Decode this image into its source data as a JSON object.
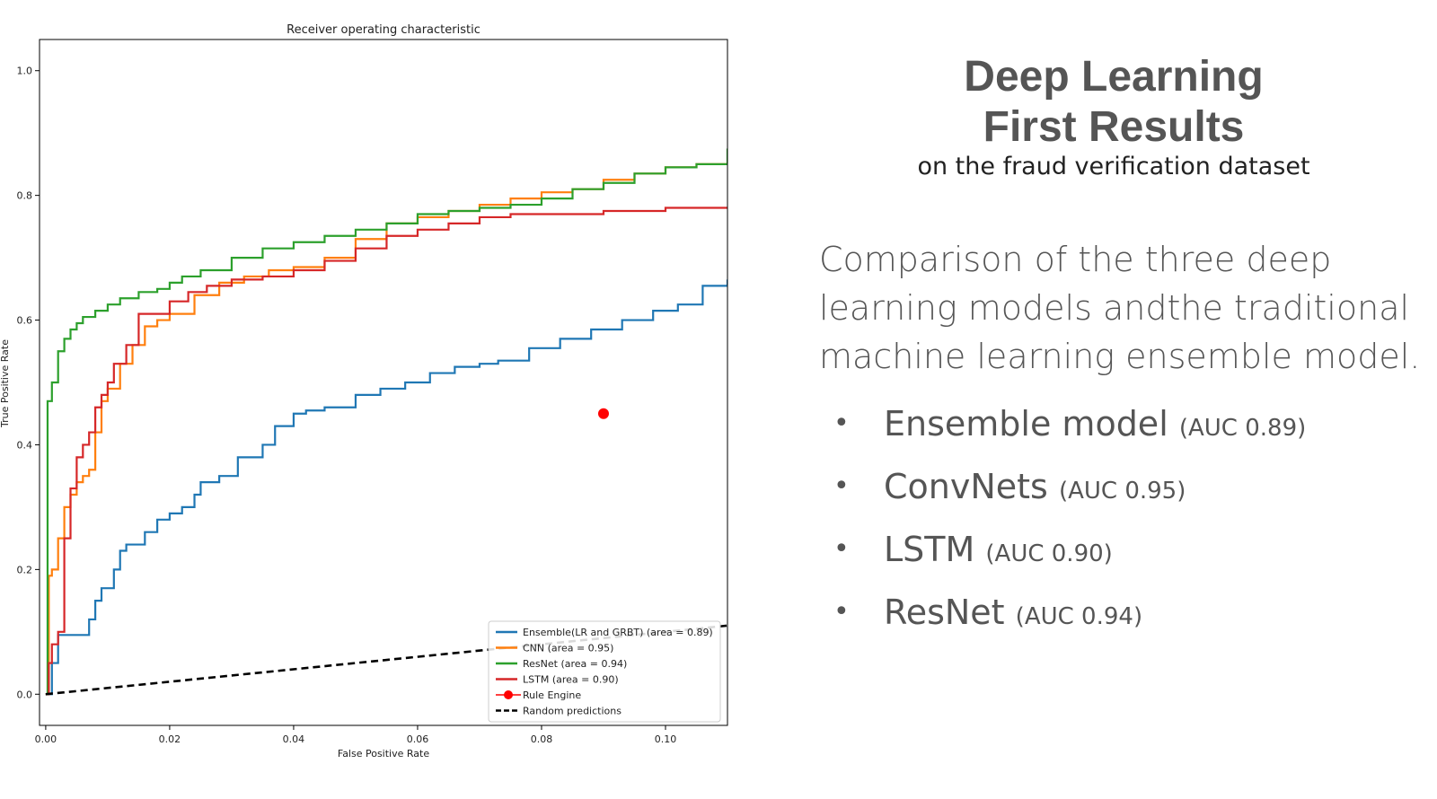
{
  "slide": {
    "title_line1": "Deep Learning",
    "title_line2": "First Results",
    "subtitle": "on the fraud verification dataset",
    "paragraph": "Comparison of the three deep learning models andthe traditional machine learning ensemble model.",
    "bullets": [
      {
        "name": "Ensemble model",
        "auc": "(AUC 0.89)"
      },
      {
        "name": "ConvNets",
        "auc": "(AUC 0.95)"
      },
      {
        "name": "LSTM",
        "auc": "(AUC 0.90)"
      },
      {
        "name": "ResNet",
        "auc": "(AUC 0.94)"
      }
    ],
    "bullet_glyph": "•"
  },
  "chart_data": {
    "type": "line",
    "title": "Receiver operating characteristic",
    "xlabel": "False Positive Rate",
    "ylabel": "True Positive Rate",
    "xlim": [
      -0.001,
      0.11
    ],
    "ylim": [
      -0.05,
      1.05
    ],
    "xticks": [
      0.0,
      0.02,
      0.04,
      0.06,
      0.08,
      0.1
    ],
    "xtick_labels": [
      "0.00",
      "0.02",
      "0.04",
      "0.06",
      "0.08",
      "0.10"
    ],
    "yticks": [
      0.0,
      0.2,
      0.4,
      0.6,
      0.8,
      1.0
    ],
    "ytick_labels": [
      "0.0",
      "0.2",
      "0.4",
      "0.6",
      "0.8",
      "1.0"
    ],
    "legend_position": "lower-right",
    "series": [
      {
        "name": "Ensemble(LR and GRBT) (area = 0.89)",
        "color": "#1f77b4",
        "kind": "line",
        "x": [
          0,
          0.0005,
          0.001,
          0.002,
          0.0065,
          0.007,
          0.008,
          0.009,
          0.011,
          0.012,
          0.013,
          0.016,
          0.018,
          0.02,
          0.022,
          0.024,
          0.025,
          0.028,
          0.031,
          0.035,
          0.037,
          0.04,
          0.042,
          0.045,
          0.05,
          0.054,
          0.058,
          0.062,
          0.066,
          0.07,
          0.073,
          0.078,
          0.083,
          0.088,
          0.093,
          0.098,
          0.102,
          0.106,
          0.11
        ],
        "y": [
          0,
          0.0,
          0.05,
          0.095,
          0.095,
          0.12,
          0.15,
          0.17,
          0.2,
          0.23,
          0.24,
          0.26,
          0.28,
          0.29,
          0.3,
          0.32,
          0.34,
          0.35,
          0.38,
          0.4,
          0.43,
          0.45,
          0.455,
          0.46,
          0.48,
          0.49,
          0.5,
          0.515,
          0.525,
          0.53,
          0.535,
          0.555,
          0.57,
          0.585,
          0.6,
          0.615,
          0.625,
          0.655,
          0.665
        ]
      },
      {
        "name": "CNN (area = 0.95)",
        "color": "#ff7f0e",
        "kind": "line",
        "x": [
          0,
          0.0005,
          0.001,
          0.002,
          0.003,
          0.004,
          0.005,
          0.006,
          0.007,
          0.008,
          0.009,
          0.01,
          0.012,
          0.014,
          0.016,
          0.018,
          0.02,
          0.024,
          0.028,
          0.032,
          0.036,
          0.04,
          0.045,
          0.05,
          0.055,
          0.06,
          0.065,
          0.07,
          0.075,
          0.08,
          0.085,
          0.09,
          0.095,
          0.1,
          0.105,
          0.11
        ],
        "y": [
          0,
          0.19,
          0.2,
          0.25,
          0.3,
          0.32,
          0.34,
          0.35,
          0.36,
          0.42,
          0.47,
          0.49,
          0.53,
          0.56,
          0.59,
          0.6,
          0.61,
          0.64,
          0.66,
          0.67,
          0.68,
          0.685,
          0.7,
          0.73,
          0.755,
          0.765,
          0.775,
          0.785,
          0.795,
          0.805,
          0.81,
          0.825,
          0.835,
          0.845,
          0.85,
          0.85
        ]
      },
      {
        "name": "ResNet (area = 0.94)",
        "color": "#2ca02c",
        "kind": "line",
        "x": [
          0,
          0.0003,
          0.001,
          0.002,
          0.003,
          0.004,
          0.005,
          0.006,
          0.008,
          0.01,
          0.012,
          0.015,
          0.018,
          0.02,
          0.022,
          0.025,
          0.03,
          0.035,
          0.04,
          0.045,
          0.05,
          0.055,
          0.06,
          0.065,
          0.07,
          0.075,
          0.08,
          0.085,
          0.09,
          0.095,
          0.1,
          0.105,
          0.11
        ],
        "y": [
          0,
          0.47,
          0.5,
          0.55,
          0.57,
          0.585,
          0.595,
          0.605,
          0.615,
          0.625,
          0.635,
          0.645,
          0.65,
          0.66,
          0.67,
          0.68,
          0.7,
          0.715,
          0.725,
          0.735,
          0.745,
          0.755,
          0.77,
          0.775,
          0.78,
          0.785,
          0.795,
          0.81,
          0.82,
          0.835,
          0.845,
          0.85,
          0.875
        ]
      },
      {
        "name": "LSTM (area = 0.90)",
        "color": "#d62728",
        "kind": "line",
        "x": [
          0,
          0.0005,
          0.001,
          0.002,
          0.003,
          0.004,
          0.005,
          0.006,
          0.007,
          0.008,
          0.009,
          0.01,
          0.011,
          0.013,
          0.015,
          0.017,
          0.02,
          0.023,
          0.026,
          0.03,
          0.035,
          0.04,
          0.045,
          0.05,
          0.055,
          0.06,
          0.065,
          0.07,
          0.075,
          0.08,
          0.09,
          0.1,
          0.11
        ],
        "y": [
          0,
          0.05,
          0.08,
          0.1,
          0.25,
          0.33,
          0.38,
          0.4,
          0.42,
          0.46,
          0.48,
          0.5,
          0.53,
          0.56,
          0.61,
          0.61,
          0.63,
          0.645,
          0.655,
          0.665,
          0.67,
          0.68,
          0.695,
          0.715,
          0.735,
          0.745,
          0.755,
          0.765,
          0.77,
          0.77,
          0.775,
          0.78,
          0.78
        ]
      },
      {
        "name": "Rule Engine",
        "color": "#ff0000",
        "kind": "point",
        "x": [
          0.09
        ],
        "y": [
          0.45
        ]
      },
      {
        "name": "Random predictions",
        "color": "#000000",
        "kind": "dashed",
        "x": [
          0,
          0.11
        ],
        "y": [
          0,
          0.11
        ]
      }
    ]
  }
}
